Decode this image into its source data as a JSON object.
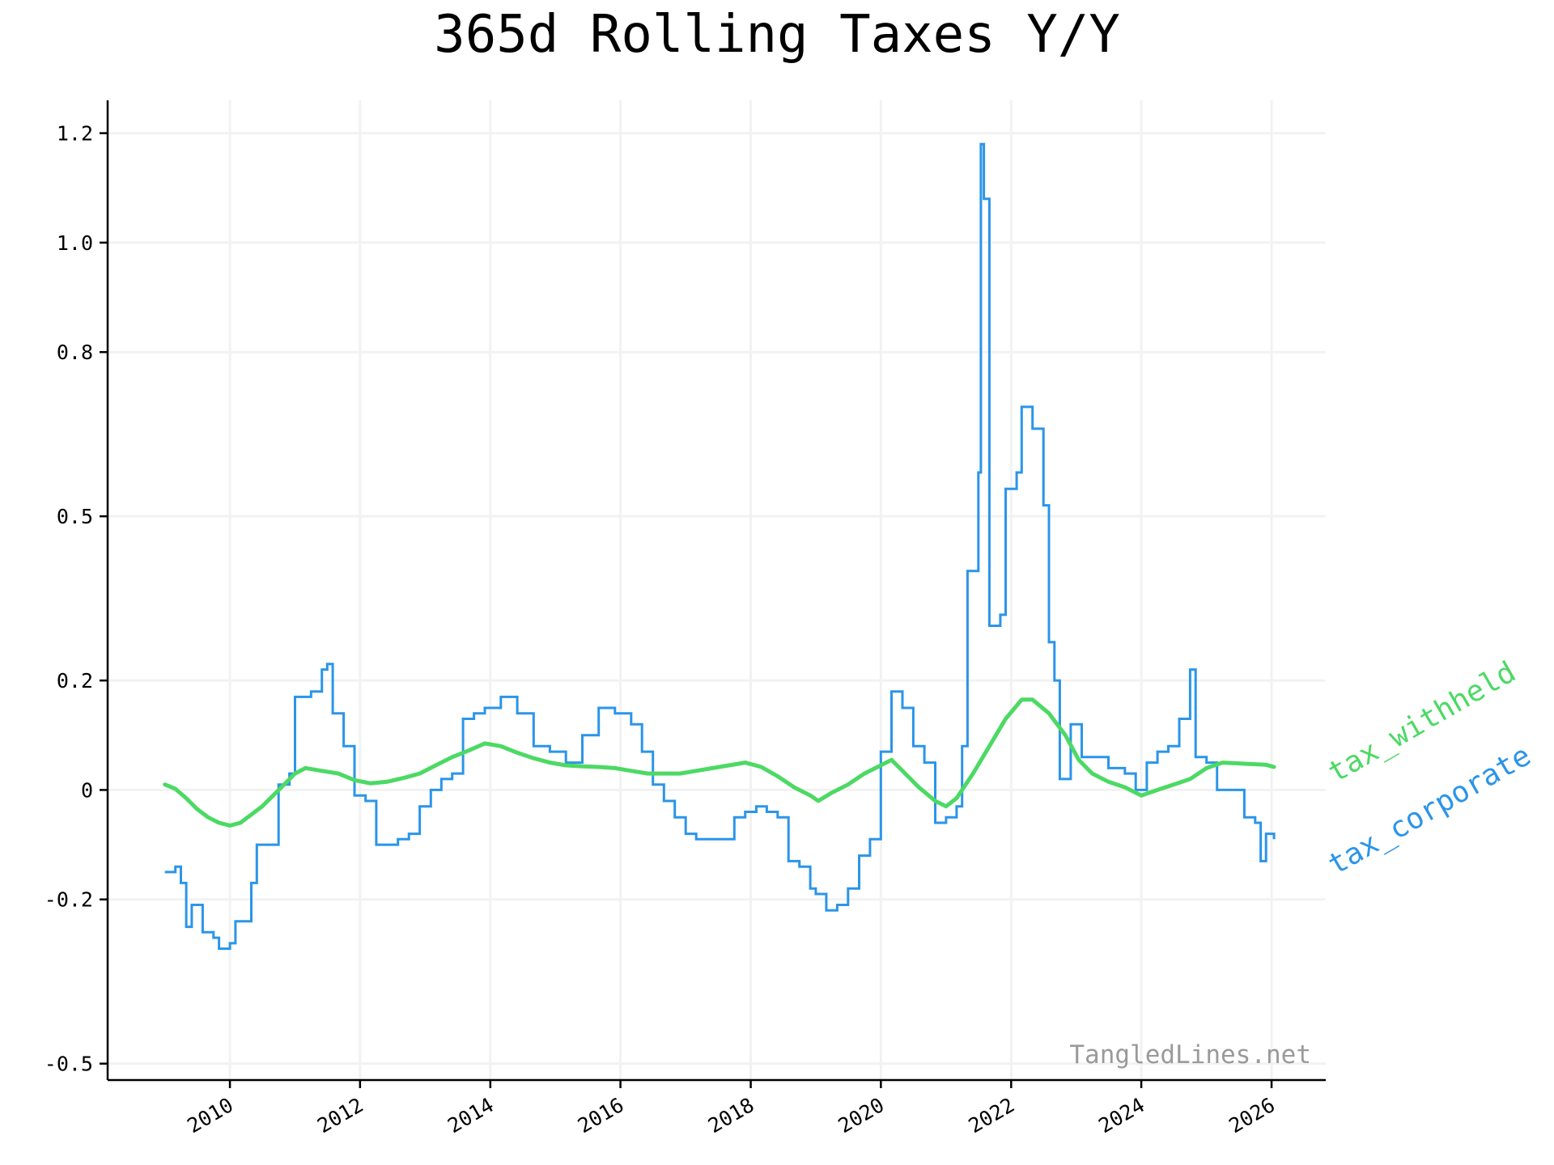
{
  "chart_data": {
    "type": "line",
    "title": "365d Rolling Taxes Y/Y",
    "xlabel": "",
    "ylabel": "",
    "x_ticks": [
      "2010",
      "2012",
      "2014",
      "2016",
      "2018",
      "2020",
      "2022",
      "2024",
      "2026"
    ],
    "y_ticks": [
      "-0.5",
      "-0.2",
      "0",
      "0.2",
      "0.5",
      "0.8",
      "1.0",
      "1.2"
    ],
    "xlim": [
      "2008-02-15",
      "2026-11-01"
    ],
    "ylim": [
      -0.53,
      1.26
    ],
    "grid": true,
    "legend": "inline labels at right end of lines",
    "watermark": "TangledLines.net",
    "series": [
      {
        "name": "tax_withheld",
        "color": "#4cd964",
        "points": [
          [
            "2009-01-01",
            0.01
          ],
          [
            "2009-03-01",
            0.002
          ],
          [
            "2009-05-01",
            -0.015
          ],
          [
            "2009-07-01",
            -0.035
          ],
          [
            "2009-09-01",
            -0.05
          ],
          [
            "2009-11-01",
            -0.06
          ],
          [
            "2010-01-01",
            -0.065
          ],
          [
            "2010-03-01",
            -0.06
          ],
          [
            "2010-05-01",
            -0.045
          ],
          [
            "2010-07-01",
            -0.03
          ],
          [
            "2010-09-01",
            -0.01
          ],
          [
            "2010-11-01",
            0.01
          ],
          [
            "2011-01-01",
            0.03
          ],
          [
            "2011-03-01",
            0.04
          ],
          [
            "2011-06-01",
            0.035
          ],
          [
            "2011-09-01",
            0.03
          ],
          [
            "2011-12-01",
            0.018
          ],
          [
            "2012-03-01",
            0.012
          ],
          [
            "2012-06-01",
            0.015
          ],
          [
            "2012-09-01",
            0.022
          ],
          [
            "2012-12-01",
            0.03
          ],
          [
            "2013-03-01",
            0.045
          ],
          [
            "2013-06-01",
            0.06
          ],
          [
            "2013-09-01",
            0.072
          ],
          [
            "2013-12-01",
            0.085
          ],
          [
            "2014-03-01",
            0.08
          ],
          [
            "2014-06-01",
            0.068
          ],
          [
            "2014-09-01",
            0.058
          ],
          [
            "2014-12-01",
            0.05
          ],
          [
            "2015-03-01",
            0.045
          ],
          [
            "2015-06-01",
            0.043
          ],
          [
            "2015-09-01",
            0.042
          ],
          [
            "2015-12-01",
            0.04
          ],
          [
            "2016-03-01",
            0.035
          ],
          [
            "2016-06-01",
            0.03
          ],
          [
            "2016-09-01",
            0.03
          ],
          [
            "2016-12-01",
            0.03
          ],
          [
            "2017-03-01",
            0.035
          ],
          [
            "2017-06-01",
            0.04
          ],
          [
            "2017-09-01",
            0.045
          ],
          [
            "2017-12-01",
            0.05
          ],
          [
            "2018-03-01",
            0.042
          ],
          [
            "2018-06-01",
            0.025
          ],
          [
            "2018-09-01",
            0.005
          ],
          [
            "2018-12-01",
            -0.01
          ],
          [
            "2019-01-15",
            -0.02
          ],
          [
            "2019-04-01",
            -0.005
          ],
          [
            "2019-07-01",
            0.01
          ],
          [
            "2019-10-01",
            0.03
          ],
          [
            "2020-01-01",
            0.045
          ],
          [
            "2020-03-01",
            0.055
          ],
          [
            "2020-05-01",
            0.035
          ],
          [
            "2020-08-01",
            0.005
          ],
          [
            "2020-11-01",
            -0.02
          ],
          [
            "2021-01-01",
            -0.03
          ],
          [
            "2021-03-01",
            -0.015
          ],
          [
            "2021-06-01",
            0.03
          ],
          [
            "2021-09-01",
            0.08
          ],
          [
            "2021-12-01",
            0.13
          ],
          [
            "2022-03-01",
            0.165
          ],
          [
            "2022-05-01",
            0.165
          ],
          [
            "2022-08-01",
            0.14
          ],
          [
            "2022-11-01",
            0.1
          ],
          [
            "2023-01-15",
            0.055
          ],
          [
            "2023-04-01",
            0.03
          ],
          [
            "2023-07-01",
            0.015
          ],
          [
            "2023-10-01",
            0.005
          ],
          [
            "2024-01-01",
            -0.01
          ],
          [
            "2024-04-01",
            0.0
          ],
          [
            "2024-07-01",
            0.01
          ],
          [
            "2024-10-01",
            0.02
          ],
          [
            "2025-01-01",
            0.04
          ],
          [
            "2025-04-01",
            0.05
          ],
          [
            "2025-08-01",
            0.048
          ],
          [
            "2025-12-01",
            0.046
          ],
          [
            "2026-01-15",
            0.042
          ]
        ]
      },
      {
        "name": "tax_corporate",
        "color": "#2b95e8",
        "points": [
          [
            "2009-01-01",
            -0.15
          ],
          [
            "2009-03-01",
            -0.14
          ],
          [
            "2009-04-01",
            -0.17
          ],
          [
            "2009-05-01",
            -0.25
          ],
          [
            "2009-06-01",
            -0.21
          ],
          [
            "2009-08-01",
            -0.26
          ],
          [
            "2009-10-01",
            -0.27
          ],
          [
            "2009-11-01",
            -0.29
          ],
          [
            "2010-01-01",
            -0.28
          ],
          [
            "2010-02-01",
            -0.24
          ],
          [
            "2010-03-01",
            -0.24
          ],
          [
            "2010-05-01",
            -0.17
          ],
          [
            "2010-06-01",
            -0.1
          ],
          [
            "2010-09-01",
            -0.1
          ],
          [
            "2010-10-01",
            0.01
          ],
          [
            "2010-12-01",
            0.03
          ],
          [
            "2011-01-01",
            0.17
          ],
          [
            "2011-04-01",
            0.18
          ],
          [
            "2011-06-01",
            0.22
          ],
          [
            "2011-07-01",
            0.23
          ],
          [
            "2011-08-01",
            0.14
          ],
          [
            "2011-10-01",
            0.08
          ],
          [
            "2011-12-01",
            -0.01
          ],
          [
            "2012-02-01",
            -0.02
          ],
          [
            "2012-04-01",
            -0.1
          ],
          [
            "2012-06-01",
            -0.1
          ],
          [
            "2012-08-01",
            -0.09
          ],
          [
            "2012-10-01",
            -0.08
          ],
          [
            "2012-12-01",
            -0.03
          ],
          [
            "2013-02-01",
            0.0
          ],
          [
            "2013-04-01",
            0.02
          ],
          [
            "2013-06-01",
            0.03
          ],
          [
            "2013-08-01",
            0.13
          ],
          [
            "2013-10-01",
            0.14
          ],
          [
            "2013-12-01",
            0.15
          ],
          [
            "2014-03-01",
            0.17
          ],
          [
            "2014-06-01",
            0.14
          ],
          [
            "2014-09-01",
            0.08
          ],
          [
            "2014-12-01",
            0.07
          ],
          [
            "2015-03-01",
            0.05
          ],
          [
            "2015-06-01",
            0.1
          ],
          [
            "2015-09-01",
            0.15
          ],
          [
            "2015-12-01",
            0.14
          ],
          [
            "2016-03-01",
            0.12
          ],
          [
            "2016-05-01",
            0.07
          ],
          [
            "2016-07-01",
            0.01
          ],
          [
            "2016-09-01",
            -0.02
          ],
          [
            "2016-11-01",
            -0.05
          ],
          [
            "2017-01-01",
            -0.08
          ],
          [
            "2017-03-01",
            -0.09
          ],
          [
            "2017-06-01",
            -0.09
          ],
          [
            "2017-08-01",
            -0.09
          ],
          [
            "2017-10-01",
            -0.05
          ],
          [
            "2017-12-01",
            -0.04
          ],
          [
            "2018-02-01",
            -0.03
          ],
          [
            "2018-04-01",
            -0.04
          ],
          [
            "2018-06-01",
            -0.05
          ],
          [
            "2018-08-01",
            -0.13
          ],
          [
            "2018-10-01",
            -0.14
          ],
          [
            "2018-12-01",
            -0.18
          ],
          [
            "2019-01-01",
            -0.19
          ],
          [
            "2019-03-01",
            -0.22
          ],
          [
            "2019-05-01",
            -0.21
          ],
          [
            "2019-07-01",
            -0.18
          ],
          [
            "2019-09-01",
            -0.12
          ],
          [
            "2019-11-01",
            -0.09
          ],
          [
            "2020-01-01",
            0.07
          ],
          [
            "2020-03-01",
            0.18
          ],
          [
            "2020-05-01",
            0.15
          ],
          [
            "2020-07-01",
            0.08
          ],
          [
            "2020-09-01",
            0.05
          ],
          [
            "2020-11-01",
            -0.06
          ],
          [
            "2021-01-01",
            -0.05
          ],
          [
            "2021-03-01",
            -0.03
          ],
          [
            "2021-04-01",
            0.08
          ],
          [
            "2021-05-01",
            0.4
          ],
          [
            "2021-07-01",
            0.58
          ],
          [
            "2021-07-15",
            1.18
          ],
          [
            "2021-08-01",
            1.08
          ],
          [
            "2021-09-01",
            0.3
          ],
          [
            "2021-11-01",
            0.32
          ],
          [
            "2021-12-01",
            0.55
          ],
          [
            "2022-02-01",
            0.58
          ],
          [
            "2022-03-01",
            0.7
          ],
          [
            "2022-05-01",
            0.66
          ],
          [
            "2022-07-01",
            0.52
          ],
          [
            "2022-08-01",
            0.27
          ],
          [
            "2022-09-01",
            0.2
          ],
          [
            "2022-10-01",
            0.02
          ],
          [
            "2022-12-01",
            0.12
          ],
          [
            "2023-02-01",
            0.06
          ],
          [
            "2023-04-01",
            0.06
          ],
          [
            "2023-07-01",
            0.04
          ],
          [
            "2023-10-01",
            0.03
          ],
          [
            "2023-12-01",
            0.0
          ],
          [
            "2024-02-01",
            0.05
          ],
          [
            "2024-04-01",
            0.07
          ],
          [
            "2024-06-01",
            0.08
          ],
          [
            "2024-08-01",
            0.13
          ],
          [
            "2024-10-01",
            0.22
          ],
          [
            "2024-11-01",
            0.06
          ],
          [
            "2025-01-01",
            0.05
          ],
          [
            "2025-03-01",
            0.0
          ],
          [
            "2025-06-01",
            0.0
          ],
          [
            "2025-08-01",
            -0.05
          ],
          [
            "2025-10-01",
            -0.06
          ],
          [
            "2025-11-01",
            -0.13
          ],
          [
            "2025-12-01",
            -0.08
          ],
          [
            "2026-01-15",
            -0.09
          ]
        ]
      }
    ]
  }
}
